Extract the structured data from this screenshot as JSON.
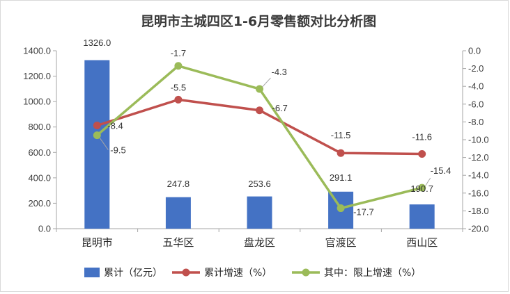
{
  "chart_data": {
    "type": "bar",
    "title": "昆明市主城四区1-6月零售额对比分析图",
    "categories": [
      "昆明市",
      "五华区",
      "盘龙区",
      "官渡区",
      "西山区"
    ],
    "series": [
      {
        "name": "累计（亿元）",
        "type": "bar",
        "axis": "left",
        "color": "#4472c4",
        "values": [
          1326.0,
          247.8,
          253.6,
          291.1,
          190.7
        ]
      },
      {
        "name": "累计增速（%）",
        "type": "line",
        "axis": "right",
        "color": "#c0504d",
        "values": [
          -8.4,
          -5.5,
          -6.7,
          -11.5,
          -11.6
        ]
      },
      {
        "name": "其中：限上增速（%）",
        "type": "line",
        "axis": "right",
        "color": "#9bbb59",
        "values": [
          -9.5,
          -1.7,
          -4.3,
          -17.7,
          -15.4
        ]
      }
    ],
    "y_left": {
      "min": 0,
      "max": 1400,
      "step": 200,
      "ticks": [
        "0.0",
        "200.0",
        "400.0",
        "600.0",
        "800.0",
        "1000.0",
        "1200.0",
        "1400.0"
      ]
    },
    "y_right": {
      "min": -20,
      "max": 0,
      "step": 2,
      "ticks": [
        "0.0",
        "-2.0",
        "-4.0",
        "-6.0",
        "-8.0",
        "-10.0",
        "-12.0",
        "-14.0",
        "-16.0",
        "-18.0",
        "-20.0"
      ]
    },
    "bar_labels": [
      "1326.0",
      "247.8",
      "253.6",
      "291.1",
      "190.7"
    ],
    "red_labels": [
      "-8.4",
      "-5.5",
      "-6.7",
      "-11.5",
      "-11.6"
    ],
    "green_labels": [
      "-9.5",
      "-1.7",
      "-4.3",
      "-17.7",
      "-15.4"
    ],
    "legend_position": "bottom",
    "grid": false
  }
}
